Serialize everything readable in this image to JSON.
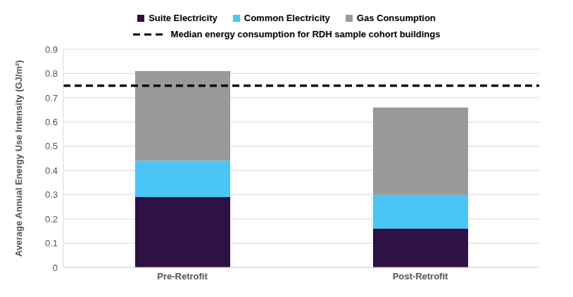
{
  "chart_data": {
    "type": "bar",
    "stacked": true,
    "categories": [
      "Pre-Retrofit",
      "Post-Retrofit"
    ],
    "y_label": "Average Annual Energy Use Intensity (GJ/m²)",
    "series": [
      {
        "name": "Suite Electricity",
        "color": "#2e1145",
        "values": [
          0.29,
          0.16
        ]
      },
      {
        "name": "Common Electricity",
        "color": "#4bc5f5",
        "values": [
          0.15,
          0.14
        ]
      },
      {
        "name": "Gas Consumption",
        "color": "#999999",
        "values": [
          0.37,
          0.36
        ]
      },
      {
        "name": "Median energy consumption for RDH sample cohort buildings",
        "type": "line",
        "line_style": "dashed",
        "color": "#000000",
        "values": [
          0.75,
          0.75
        ]
      }
    ],
    "ylim": [
      0,
      0.9
    ],
    "yticks": [
      0,
      0.1,
      0.2,
      0.3,
      0.4,
      0.5,
      0.6,
      0.7,
      0.8,
      0.9
    ],
    "grid": true,
    "legend": "top"
  }
}
